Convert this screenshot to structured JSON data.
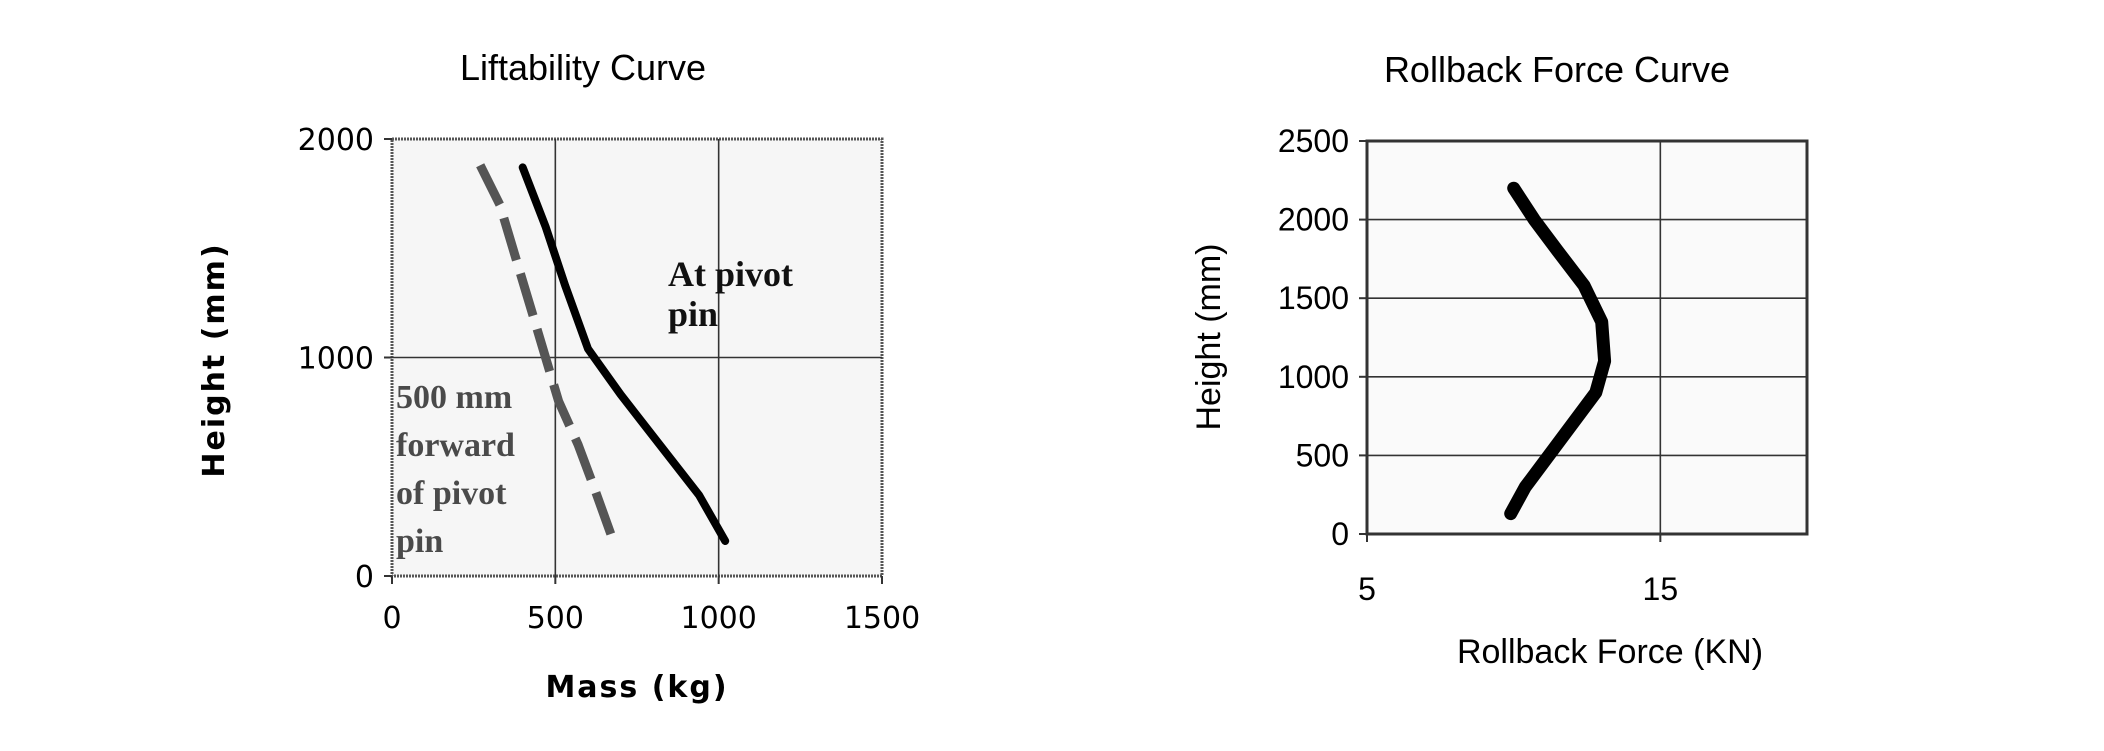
{
  "chart_data": [
    {
      "type": "line",
      "title": "Liftability Curve",
      "xlabel": "Mass (kg)",
      "ylabel": "Height (mm)",
      "xlim": [
        0,
        1500
      ],
      "ylim": [
        0,
        2000
      ],
      "xticks": [
        "0",
        "500",
        "1000",
        "1500"
      ],
      "yticks": [
        "0",
        "1000",
        "2000"
      ],
      "grid": true,
      "series": [
        {
          "name": "At pivot pin",
          "style": "solid",
          "color": "#000000",
          "x": [
            400,
            470,
            530,
            600,
            700,
            820,
            940,
            1020
          ],
          "y": [
            1870,
            1600,
            1330,
            1040,
            830,
            600,
            370,
            160
          ]
        },
        {
          "name": "500 mm forward of pivot pin",
          "style": "dashed",
          "color": "#555555",
          "x": [
            270,
            330,
            380,
            430,
            510,
            570,
            620,
            680
          ],
          "y": [
            1880,
            1700,
            1450,
            1200,
            800,
            600,
            400,
            150
          ]
        }
      ],
      "annotations": [
        {
          "lines": [
            "At pivot",
            "pin"
          ]
        },
        {
          "lines": [
            "500 mm",
            "forward",
            "of pivot",
            "pin"
          ]
        }
      ]
    },
    {
      "type": "line",
      "title": "Rollback Force Curve",
      "xlabel": "Rollback Force (KN)",
      "ylabel": "Height (mm)",
      "xlim": [
        5,
        20
      ],
      "ylim": [
        0,
        2500
      ],
      "xticks": [
        "5",
        "15"
      ],
      "yticks": [
        "0",
        "500",
        "1000",
        "1500",
        "2000",
        "2500"
      ],
      "grid": true,
      "series": [
        {
          "style": "solid",
          "color": "#000000",
          "x": [
            10.0,
            10.7,
            11.5,
            12.4,
            13.0,
            13.1,
            12.8,
            12.0,
            11.2,
            10.4,
            9.9
          ],
          "y": [
            2200,
            2000,
            1800,
            1580,
            1350,
            1100,
            900,
            700,
            500,
            300,
            130
          ]
        }
      ]
    }
  ]
}
